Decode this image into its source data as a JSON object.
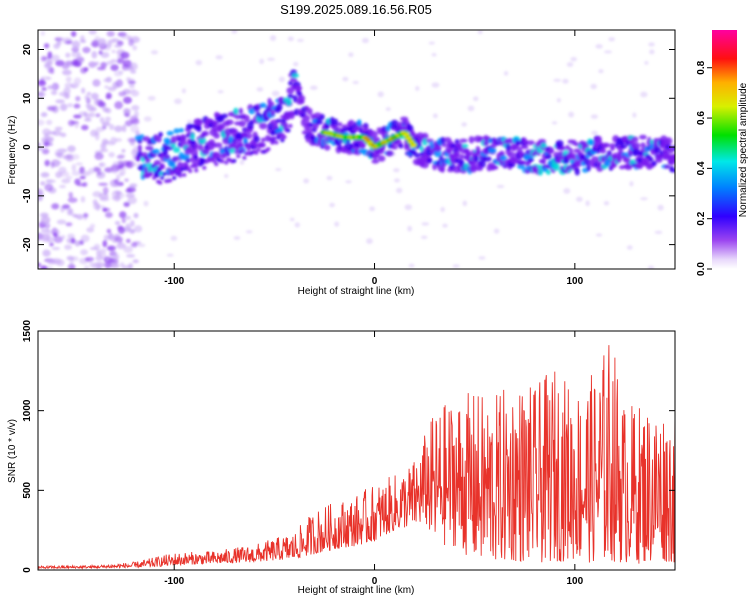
{
  "title": "S199.2025.089.16.56.R05",
  "colors": {
    "snr_line": "#e8322a",
    "axes": "#000000",
    "spectrogram_low": "#b98cf5",
    "spectrogram_high": "#ff0000"
  },
  "colorbar": {
    "label": "Normalized spectral amplitude",
    "ticks": [
      "0.0",
      "0.2",
      "0.4",
      "0.6",
      "0.8"
    ],
    "tick_values": [
      0.0,
      0.2,
      0.4,
      0.6,
      0.8
    ],
    "range": [
      0.0,
      0.95
    ],
    "colormap": "rainbow (purple-blue-cyan-green-yellow-red-magenta)"
  },
  "chart_data": [
    {
      "type": "heatmap",
      "title": "S199.2025.089.16.56.R05",
      "xlabel": "Height of straight line (km)",
      "ylabel": "Frequency (Hz)",
      "xlim": [
        -168,
        150
      ],
      "ylim": [
        -25,
        24
      ],
      "xticks": [
        -100,
        0,
        100
      ],
      "xtick_labels": [
        "-100",
        "0",
        "100"
      ],
      "yticks": [
        -20,
        -10,
        0,
        10,
        20
      ],
      "ytick_labels": [
        "-20",
        "-10",
        "0",
        "10",
        "20"
      ],
      "ridge": {
        "x": [
          -115,
          -100,
          -80,
          -60,
          -45,
          -40,
          -35,
          -25,
          -15,
          -5,
          0,
          5,
          10,
          15,
          20,
          30,
          40,
          60,
          80,
          100,
          120,
          140,
          150
        ],
        "frequency_hz": [
          -2,
          -1,
          2,
          4,
          7,
          12,
          5,
          3,
          2,
          2,
          0,
          1,
          2,
          3,
          0,
          -1,
          -2,
          -1,
          -2,
          -2,
          -1,
          -1,
          -2
        ]
      },
      "peak_amplitude_region_x": [
        -25,
        20
      ]
    },
    {
      "type": "line",
      "xlabel": "Height of straight line (km)",
      "ylabel": "SNR (10 * v/v)",
      "xlim": [
        -168,
        150
      ],
      "ylim": [
        0,
        1500
      ],
      "xticks": [
        -100,
        0,
        100
      ],
      "xtick_labels": [
        "-100",
        "0",
        "100"
      ],
      "yticks": [
        0,
        500,
        1000,
        1500
      ],
      "ytick_labels": [
        "0",
        "500",
        "1000",
        "1500"
      ],
      "envelope": {
        "x": [
          -168,
          -140,
          -120,
          -110,
          -100,
          -80,
          -60,
          -40,
          -30,
          -20,
          -10,
          0,
          10,
          20,
          25,
          30,
          40,
          50,
          60,
          70,
          80,
          90,
          100,
          110,
          118,
          125,
          135,
          145,
          150
        ],
        "max_snr": [
          25,
          30,
          50,
          80,
          110,
          120,
          160,
          240,
          380,
          430,
          470,
          540,
          600,
          700,
          860,
          1000,
          1100,
          1120,
          1100,
          1200,
          1150,
          1280,
          1150,
          1250,
          1500,
          1050,
          1050,
          1040,
          1000
        ],
        "min_snr": [
          10,
          12,
          15,
          20,
          30,
          40,
          50,
          70,
          100,
          130,
          150,
          180,
          250,
          280,
          300,
          150,
          150,
          50,
          40,
          50,
          40,
          50,
          60,
          40,
          50,
          40,
          40,
          50,
          40
        ]
      }
    }
  ]
}
